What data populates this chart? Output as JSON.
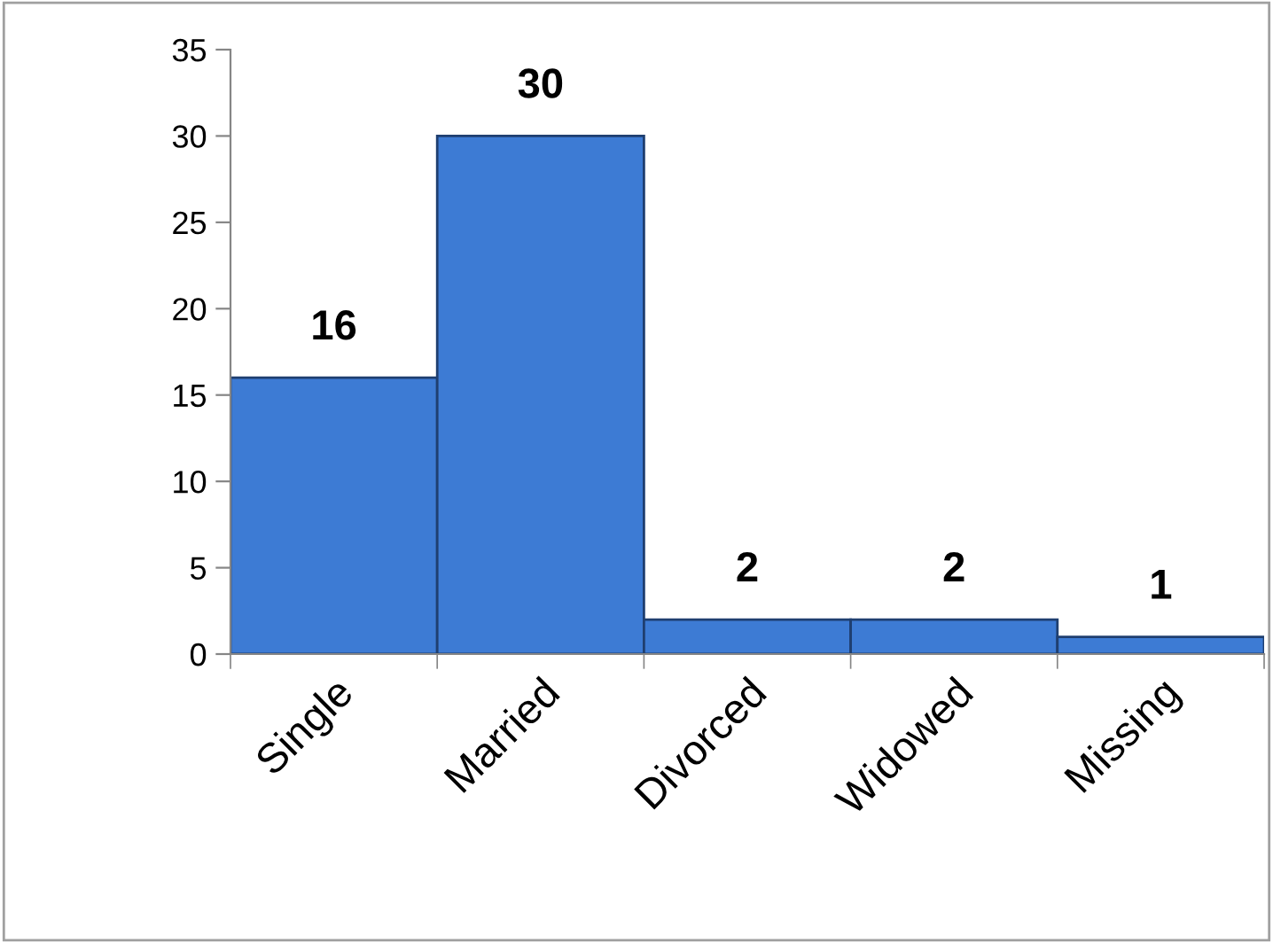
{
  "chart_data": {
    "type": "bar",
    "categories": [
      "Single",
      "Married",
      "Divorced",
      "Widowed",
      "Missing"
    ],
    "values": [
      16,
      30,
      2,
      2,
      1
    ],
    "color": "#3d7bd4",
    "ylim": [
      0,
      35
    ],
    "yticks": [
      0,
      5,
      10,
      15,
      20,
      25,
      30,
      35
    ],
    "grid": false,
    "data_labels": true
  }
}
